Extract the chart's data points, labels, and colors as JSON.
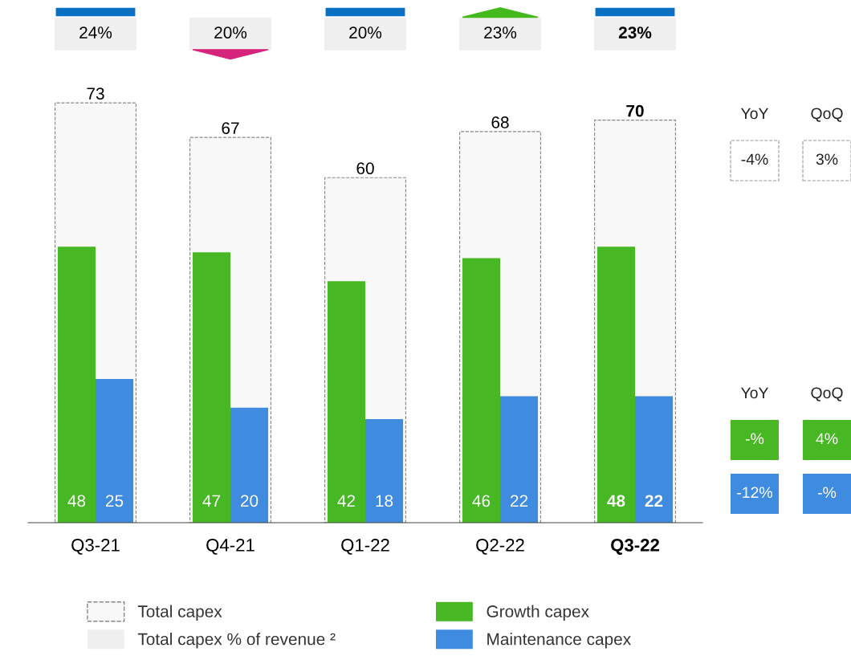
{
  "chart_data": {
    "type": "bar",
    "categories": [
      "Q3-21",
      "Q4-21",
      "Q1-22",
      "Q2-22",
      "Q3-22"
    ],
    "series": [
      {
        "name": "Total capex",
        "color": "#f8f8f8",
        "line_style": "dashed",
        "values": [
          73,
          67,
          60,
          68,
          70
        ]
      },
      {
        "name": "Growth capex",
        "color": "#47b823",
        "values": [
          48,
          47,
          42,
          46,
          48
        ]
      },
      {
        "name": "Maintenance capex",
        "color": "#3f8be0",
        "values": [
          25,
          20,
          18,
          22,
          22
        ]
      }
    ],
    "data_labels": true,
    "tick_labels": "x",
    "grid": false,
    "legend": "bottom",
    "annotations": [
      "YoY",
      "QoQ",
      "-4%",
      "3%",
      "YoY",
      "QoQ",
      "-%",
      "4%",
      "-12%",
      "-%",
      "Total capex % of revenue ²",
      "24%",
      "20%",
      "20%",
      "23%",
      "23%"
    ]
  }
}
